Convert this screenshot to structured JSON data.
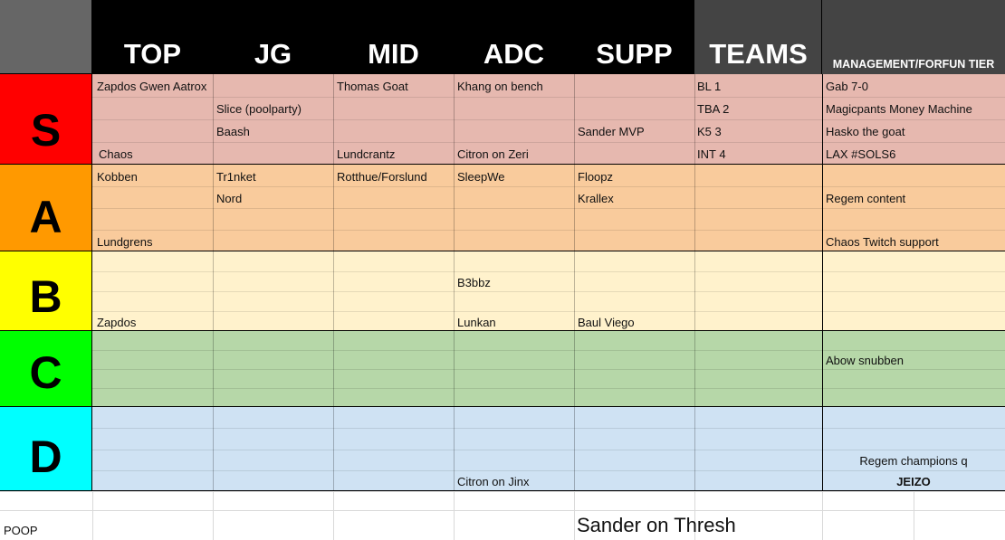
{
  "header": {
    "columns": [
      "TOP",
      "JG",
      "MID",
      "ADC",
      "SUPP",
      "TEAMS",
      "MANAGEMENT/FORFUN TIER"
    ]
  },
  "colors": {
    "header_black": "#000000",
    "header_gray": "#444444",
    "corner_gray": "#666666",
    "tiers": {
      "S": {
        "label": "#ff0000",
        "row": "#e6b8af"
      },
      "A": {
        "label": "#ff9900",
        "row": "#f9cb9c"
      },
      "B": {
        "label": "#ffff00",
        "row": "#fff2cc"
      },
      "C": {
        "label": "#00ff00",
        "row": "#b6d7a8"
      },
      "D": {
        "label": "#00ffff",
        "row": "#cfe2f3"
      }
    }
  },
  "tiers": [
    {
      "label": "S",
      "cells": {
        "top": [
          "Zapdos Gwen Aatrox",
          "",
          "",
          "Chaos"
        ],
        "jg": [
          "",
          "Slice (poolparty)",
          "Baash",
          ""
        ],
        "mid": [
          "Thomas Goat",
          "",
          "",
          "Lundcrantz"
        ],
        "adc": [
          "Khang on bench",
          "",
          "",
          "Citron on Zeri"
        ],
        "supp": [
          "",
          "",
          "Sander MVP",
          ""
        ],
        "teams": [
          "BL 1",
          "TBA 2",
          "K5 3",
          "INT 4"
        ],
        "mgmt": [
          "Gab 7-0",
          "Magicpants Money Machine",
          "Hasko the goat",
          "LAX #SOLS6"
        ]
      }
    },
    {
      "label": "A",
      "cells": {
        "top": [
          "Kobben",
          "",
          "",
          "Lundgrens"
        ],
        "jg": [
          "Tr1nket",
          "Nord",
          "",
          ""
        ],
        "mid": [
          "Rotthue/Forslund",
          "",
          "",
          ""
        ],
        "adc": [
          "SleepWe",
          "",
          "",
          ""
        ],
        "supp": [
          "Floopz",
          "Krallex",
          "",
          ""
        ],
        "teams": [
          "",
          "",
          "",
          ""
        ],
        "mgmt": [
          "",
          "Regem content",
          "",
          "Chaos Twitch support"
        ]
      }
    },
    {
      "label": "B",
      "cells": {
        "top": [
          "",
          "",
          "",
          "Zapdos"
        ],
        "jg": [
          "",
          "",
          "",
          ""
        ],
        "mid": [
          "",
          "",
          "",
          ""
        ],
        "adc": [
          "",
          "B3bbz",
          "",
          "Lunkan"
        ],
        "supp": [
          "",
          "",
          "",
          "Baul Viego"
        ],
        "teams": [
          "",
          "",
          "",
          ""
        ],
        "mgmt": [
          "",
          "",
          "",
          ""
        ]
      }
    },
    {
      "label": "C",
      "cells": {
        "top": [
          "",
          "",
          "",
          ""
        ],
        "jg": [
          "",
          "",
          "",
          ""
        ],
        "mid": [
          "",
          "",
          "",
          ""
        ],
        "adc": [
          "",
          "",
          "",
          ""
        ],
        "supp": [
          "",
          "",
          "",
          ""
        ],
        "teams": [
          "",
          "",
          "",
          ""
        ],
        "mgmt": [
          "",
          "Abow snubben",
          "",
          ""
        ]
      }
    },
    {
      "label": "D",
      "cells": {
        "top": [
          "",
          "",
          "",
          ""
        ],
        "jg": [
          "",
          "",
          "",
          ""
        ],
        "mid": [
          "",
          "",
          "",
          ""
        ],
        "adc": [
          "",
          "",
          "",
          "Citron on Jinx"
        ],
        "supp": [
          "",
          "",
          "",
          ""
        ],
        "teams": [
          "",
          "",
          "",
          ""
        ],
        "mgmt": [
          "",
          "",
          "Regem champions q",
          "JEIZO"
        ]
      }
    }
  ],
  "footer": {
    "poop_label": "POOP",
    "thresh_label": "Sander on Thresh"
  }
}
